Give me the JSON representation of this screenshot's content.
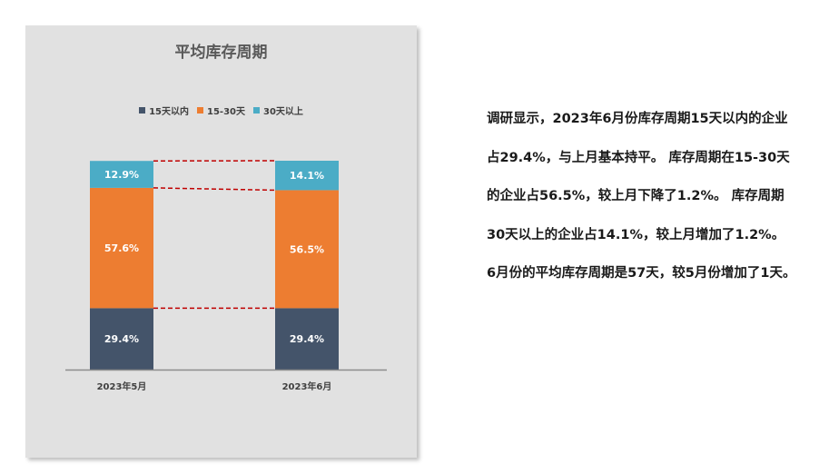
{
  "chart_data": {
    "type": "bar",
    "stacked": true,
    "title": "平均库存周期",
    "categories": [
      "2023年5月",
      "2023年6月"
    ],
    "series": [
      {
        "name": "15天以内",
        "color": "#44546a",
        "values": [
          29.4,
          29.4
        ],
        "labels": [
          "29.4%",
          "29.4%"
        ]
      },
      {
        "name": "15-30天",
        "color": "#ed7d31",
        "values": [
          57.6,
          56.5
        ],
        "labels": [
          "57.6%",
          "56.5%"
        ]
      },
      {
        "name": "30天以上",
        "color": "#4bacc6",
        "values": [
          12.9,
          14.1
        ],
        "labels": [
          "12.9%",
          "14.1%"
        ]
      }
    ],
    "ylim": [
      0,
      100
    ],
    "legend_position": "top",
    "grid": false,
    "series_lines": true
  },
  "description_lines": [
    "调研显示，2023年6月份库存周期15天以内的企业",
    "占29.4%，与上月基本持平。 库存周期在15-30天",
    "的企业占56.5%，较上月下降了1.2%。 库存周期",
    "30天以上的企业占14.1%，较上月增加了1.2%。",
    "6月份的平均库存周期是57天，较5月份增加了1天。"
  ]
}
